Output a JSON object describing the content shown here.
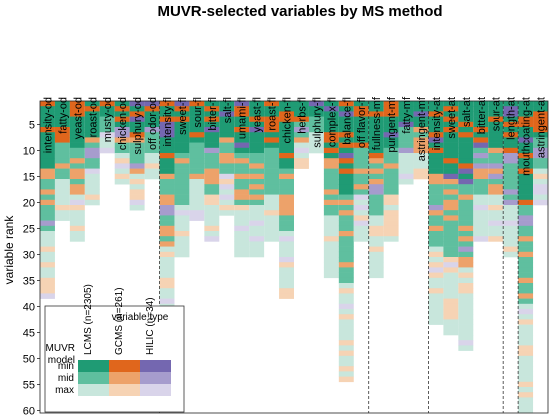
{
  "chart_data": {
    "type": "heatmap",
    "title": "MUVR-selected variables by MS method",
    "ylabel": "variable rank",
    "yticks": [
      5,
      10,
      15,
      20,
      25,
      30,
      35,
      40,
      45,
      50,
      55,
      60
    ],
    "ylim": [
      1,
      60
    ],
    "categories": [
      "intensity-od",
      "fatty-od",
      "yeast-od",
      "roast-od",
      "musty-od",
      "chicken-od",
      "sulphury-od",
      "off odor-od",
      "intensity-fl",
      "sweet-fl",
      "sour-fl",
      "bitter-fl",
      "salt-fl",
      "umami-fl",
      "yeast-fl",
      "roast-fl",
      "chicken-fl",
      "herbs-fl",
      "sulphury-fl",
      "complex-fl",
      "balance-fl",
      "off flavor-fl",
      "fullness-mf",
      "pungent-mf",
      "fatty-mf",
      "astringent-mf",
      "intensity-at",
      "sweet-at",
      "salt-at",
      "bitter-at",
      "sour-at",
      "length-at",
      "mouthcoating-at",
      "astringent-at"
    ],
    "group_separators_after": [
      "off odor-od",
      "off flavor-fl",
      "astringent-mf",
      "sour-at",
      "length-at"
    ],
    "max_rank": [
      38,
      23,
      27,
      20,
      10,
      16,
      21,
      15,
      43,
      30,
      23,
      27,
      22,
      30,
      30,
      27,
      38,
      13,
      10,
      34,
      54,
      27,
      34,
      27,
      16,
      15,
      43,
      45,
      48,
      27,
      27,
      30,
      60,
      20
    ],
    "series": [
      {
        "name": "LCMS (n=2305)",
        "colors": {
          "min": "#1f9b74",
          "mid": "#5fbf9f",
          "max": "#c8e6dc"
        }
      },
      {
        "name": "GCMS (n=261)",
        "colors": {
          "min": "#e0661c",
          "mid": "#eda26a",
          "max": "#f6d3b4"
        }
      },
      {
        "name": "HILIC (n=34)",
        "colors": {
          "min": "#7467b0",
          "mid": "#a69ccd",
          "max": "#d9d4ea"
        }
      }
    ],
    "legend": {
      "position": "bottom-left",
      "title": "variable type",
      "row_header": [
        "MUVR",
        "model"
      ],
      "rows": [
        "min",
        "mid",
        "max"
      ]
    }
  }
}
